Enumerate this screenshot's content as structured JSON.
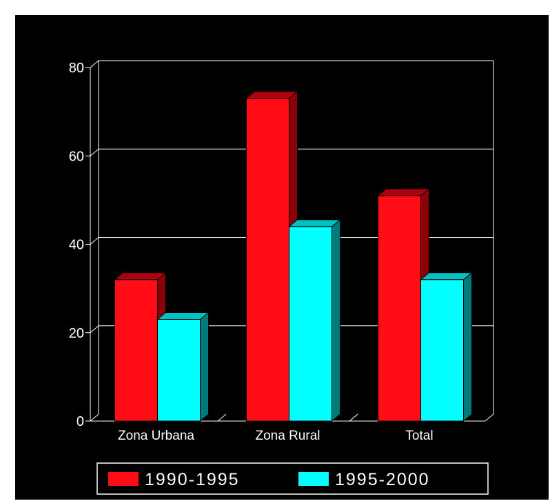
{
  "chart_data": {
    "type": "bar",
    "title": "",
    "xlabel": "",
    "ylabel": "",
    "categories": [
      "Zona Urbana",
      "Zona Rural",
      "Total"
    ],
    "series": [
      {
        "name": "1990-1995",
        "values": [
          32,
          73,
          51
        ],
        "color": "#ff0c17",
        "side_color": "#8c0008",
        "top_color": "#b00010"
      },
      {
        "name": "1995-2000",
        "values": [
          23,
          44,
          32
        ],
        "color": "#00ffff",
        "side_color": "#007a7a",
        "top_color": "#00c2c2"
      }
    ],
    "ylim": [
      0,
      80
    ],
    "yticks": [
      0,
      20,
      40,
      60,
      80
    ],
    "grid": true,
    "legend_position": "bottom",
    "background": "#000000",
    "frame_color": "#ffffff"
  }
}
